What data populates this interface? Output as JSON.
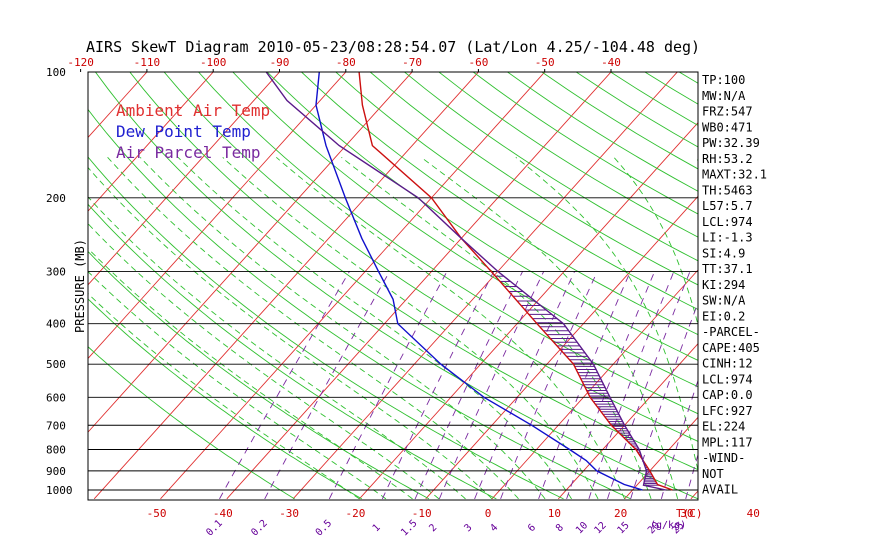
{
  "chart_data": {
    "type": "skew-t",
    "title": "AIRS SkewT Diagram 2010-05-23/08:28:54.07 (Lat/Lon 4.25/-104.48 deg)",
    "ylabel": "PRESSURE (MB)",
    "xlabel": "T(C)",
    "mixing_ratio_unit": "(g/kg)",
    "pressure_ticks": [
      100,
      200,
      300,
      400,
      500,
      600,
      700,
      800,
      900,
      1000
    ],
    "temp_ticks_top": [
      -120,
      -110,
      -100,
      -90,
      -80,
      -70,
      -60,
      -50,
      -40
    ],
    "temp_ticks_bottom": [
      -50,
      -40,
      -30,
      -20,
      -10,
      0,
      10,
      20,
      30,
      40
    ],
    "mixing_ratio_labels": [
      "0.1",
      "0.2",
      "0.5",
      "1",
      "1.5",
      "2",
      "3",
      "4",
      "6",
      "8",
      "10",
      "12",
      "15",
      "20",
      "25",
      "30",
      "40"
    ],
    "legend": [
      {
        "label": "Ambient Air Temp",
        "color": "#e03030"
      },
      {
        "label": "Dew Point Temp",
        "color": "#2020d0"
      },
      {
        "label": "Air Parcel Temp",
        "color": "#7a2aa0"
      }
    ],
    "grid_colors": {
      "isotherm": "#e03030",
      "dry_adiabat": "#30c030",
      "moist_adiabat": "#30c030",
      "mixing_ratio": "#7a2aa0",
      "isobar": "#000000"
    },
    "series": [
      {
        "name": "Ambient Air Temp",
        "color": "#cc1010",
        "points": [
          [
            1000,
            26
          ],
          [
            970,
            23
          ],
          [
            900,
            20
          ],
          [
            800,
            15
          ],
          [
            700,
            8
          ],
          [
            600,
            1
          ],
          [
            500,
            -6
          ],
          [
            400,
            -17
          ],
          [
            300,
            -31
          ],
          [
            250,
            -40
          ],
          [
            200,
            -50
          ],
          [
            150,
            -66
          ],
          [
            120,
            -73
          ],
          [
            100,
            -78
          ]
        ]
      },
      {
        "name": "Dew Point Temp",
        "color": "#1010cc",
        "points": [
          [
            1000,
            21.5
          ],
          [
            970,
            18
          ],
          [
            900,
            12
          ],
          [
            850,
            9
          ],
          [
            800,
            5
          ],
          [
            700,
            -4
          ],
          [
            600,
            -15
          ],
          [
            500,
            -26
          ],
          [
            400,
            -38
          ],
          [
            350,
            -42
          ],
          [
            300,
            -48
          ],
          [
            250,
            -55
          ],
          [
            200,
            -63
          ],
          [
            150,
            -73
          ],
          [
            120,
            -80
          ],
          [
            100,
            -84
          ]
        ]
      },
      {
        "name": "Air Parcel Temp",
        "color": "#5a1a8a",
        "points": [
          [
            1000,
            25
          ],
          [
            974,
            21
          ],
          [
            900,
            19.5
          ],
          [
            800,
            15.5
          ],
          [
            700,
            10
          ],
          [
            600,
            4
          ],
          [
            500,
            -3
          ],
          [
            400,
            -13
          ],
          [
            300,
            -30
          ],
          [
            250,
            -40
          ],
          [
            200,
            -52
          ],
          [
            150,
            -71
          ],
          [
            117,
            -85
          ],
          [
            100,
            -92
          ]
        ]
      }
    ],
    "shading": {
      "between": [
        "Ambient Air Temp",
        "Air Parcel Temp"
      ],
      "from_p": 974,
      "to_p": 300,
      "hatch": true
    }
  },
  "indices": [
    "TP:100",
    "MW:N/A",
    "FRZ:547",
    "WB0:471",
    "PW:32.39",
    "RH:53.2",
    "MAXT:32.1",
    "TH:5463",
    "L57:5.7",
    "LCL:974",
    "LI:-1.3",
    "SI:4.9",
    "TT:37.1",
    "KI:294",
    "SW:N/A",
    "EI:0.2",
    "-PARCEL-",
    "CAPE:405",
    "CINH:12",
    "LCL:974",
    "CAP:0.0",
    "LFC:927",
    "EL:224",
    "MPL:117",
    "-WIND-",
    "NOT",
    "AVAIL"
  ]
}
